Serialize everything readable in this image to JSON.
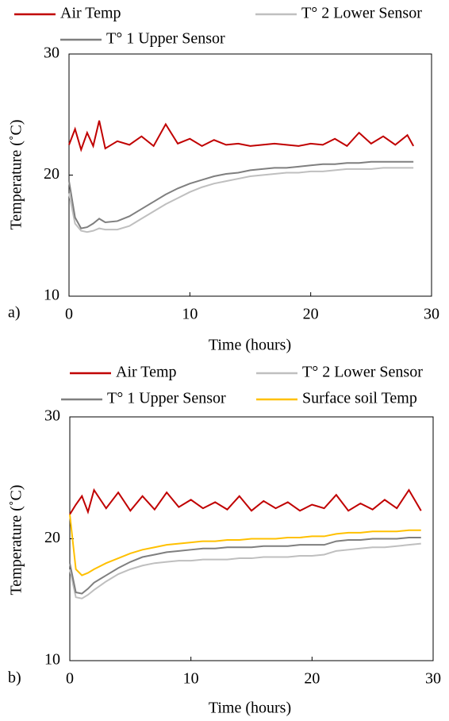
{
  "chart_data": [
    {
      "type": "line",
      "label": "a)",
      "xlabel": "Time (hours)",
      "ylabel": "Temperature (˚C)",
      "xlim": [
        0,
        30
      ],
      "xticks": [
        0,
        10,
        20,
        30
      ],
      "ylim": [
        10,
        30
      ],
      "yticks": [
        10,
        20,
        30
      ],
      "x": [
        0,
        0.5,
        1,
        1.5,
        2,
        2.5,
        3,
        4,
        5,
        6,
        7,
        8,
        9,
        10,
        11,
        12,
        13,
        14,
        15,
        16,
        17,
        18,
        19,
        20,
        21,
        22,
        23,
        24,
        25,
        26,
        27,
        28,
        28.5
      ],
      "series": [
        {
          "name": "Air Temp",
          "color": "#c00000",
          "values": [
            22.5,
            23.8,
            22.1,
            23.5,
            22.4,
            24.5,
            22.2,
            22.8,
            22.5,
            23.2,
            22.4,
            24.2,
            22.6,
            23.0,
            22.4,
            22.9,
            22.5,
            22.6,
            22.4,
            22.5,
            22.6,
            22.5,
            22.4,
            22.6,
            22.5,
            23.0,
            22.4,
            23.5,
            22.6,
            23.2,
            22.5,
            23.3,
            22.4
          ]
        },
        {
          "name": "T° 2 Lower Sensor",
          "color": "#bfbfbf",
          "values": [
            18.5,
            16.0,
            15.4,
            15.3,
            15.4,
            15.6,
            15.5,
            15.5,
            15.8,
            16.4,
            17.0,
            17.6,
            18.1,
            18.6,
            19.0,
            19.3,
            19.5,
            19.7,
            19.9,
            20.0,
            20.1,
            20.2,
            20.2,
            20.3,
            20.3,
            20.4,
            20.5,
            20.5,
            20.5,
            20.6,
            20.6,
            20.6,
            20.6
          ]
        },
        {
          "name": "T° 1 Upper Sensor",
          "color": "#7f7f7f",
          "values": [
            19.5,
            16.5,
            15.6,
            15.7,
            16.0,
            16.4,
            16.1,
            16.2,
            16.6,
            17.2,
            17.8,
            18.4,
            18.9,
            19.3,
            19.6,
            19.9,
            20.1,
            20.2,
            20.4,
            20.5,
            20.6,
            20.6,
            20.7,
            20.8,
            20.9,
            20.9,
            21.0,
            21.0,
            21.1,
            21.1,
            21.1,
            21.1,
            21.1
          ]
        }
      ]
    },
    {
      "type": "line",
      "label": "b)",
      "xlabel": "Time (hours)",
      "ylabel": "Temperature (˚C)",
      "xlim": [
        0,
        30
      ],
      "xticks": [
        0,
        10,
        20,
        30
      ],
      "ylim": [
        10,
        30
      ],
      "yticks": [
        10,
        20,
        30
      ],
      "x": [
        0,
        0.5,
        1,
        1.5,
        2,
        3,
        4,
        5,
        6,
        7,
        8,
        9,
        10,
        11,
        12,
        13,
        14,
        15,
        16,
        17,
        18,
        19,
        20,
        21,
        22,
        23,
        24,
        25,
        26,
        27,
        28,
        29
      ],
      "series": [
        {
          "name": "Air Temp",
          "color": "#c00000",
          "values": [
            22.0,
            22.8,
            23.5,
            22.2,
            24.0,
            22.5,
            23.8,
            22.3,
            23.5,
            22.4,
            23.8,
            22.6,
            23.2,
            22.5,
            23.0,
            22.4,
            23.5,
            22.3,
            23.1,
            22.5,
            23.0,
            22.3,
            22.8,
            22.5,
            23.6,
            22.3,
            22.9,
            22.4,
            23.2,
            22.5,
            24.0,
            22.3
          ]
        },
        {
          "name": "T° 2 Lower Sensor",
          "color": "#bfbfbf",
          "values": [
            17.5,
            15.2,
            15.1,
            15.4,
            15.8,
            16.5,
            17.1,
            17.5,
            17.8,
            18.0,
            18.1,
            18.2,
            18.2,
            18.3,
            18.3,
            18.3,
            18.4,
            18.4,
            18.5,
            18.5,
            18.5,
            18.6,
            18.6,
            18.7,
            19.0,
            19.1,
            19.2,
            19.3,
            19.3,
            19.4,
            19.5,
            19.6
          ]
        },
        {
          "name": "T° 1 Upper Sensor",
          "color": "#7f7f7f",
          "values": [
            18.0,
            15.6,
            15.5,
            15.9,
            16.4,
            17.0,
            17.6,
            18.1,
            18.5,
            18.7,
            18.9,
            19.0,
            19.1,
            19.2,
            19.2,
            19.3,
            19.3,
            19.3,
            19.4,
            19.4,
            19.4,
            19.5,
            19.5,
            19.5,
            19.8,
            19.9,
            19.9,
            20.0,
            20.0,
            20.0,
            20.1,
            20.1
          ]
        },
        {
          "name": "Surface soil Temp",
          "color": "#ffc000",
          "values": [
            22.0,
            17.5,
            17.0,
            17.2,
            17.5,
            18.0,
            18.4,
            18.8,
            19.1,
            19.3,
            19.5,
            19.6,
            19.7,
            19.8,
            19.8,
            19.9,
            19.9,
            20.0,
            20.0,
            20.0,
            20.1,
            20.1,
            20.2,
            20.2,
            20.4,
            20.5,
            20.5,
            20.6,
            20.6,
            20.6,
            20.7,
            20.7
          ]
        }
      ]
    }
  ]
}
